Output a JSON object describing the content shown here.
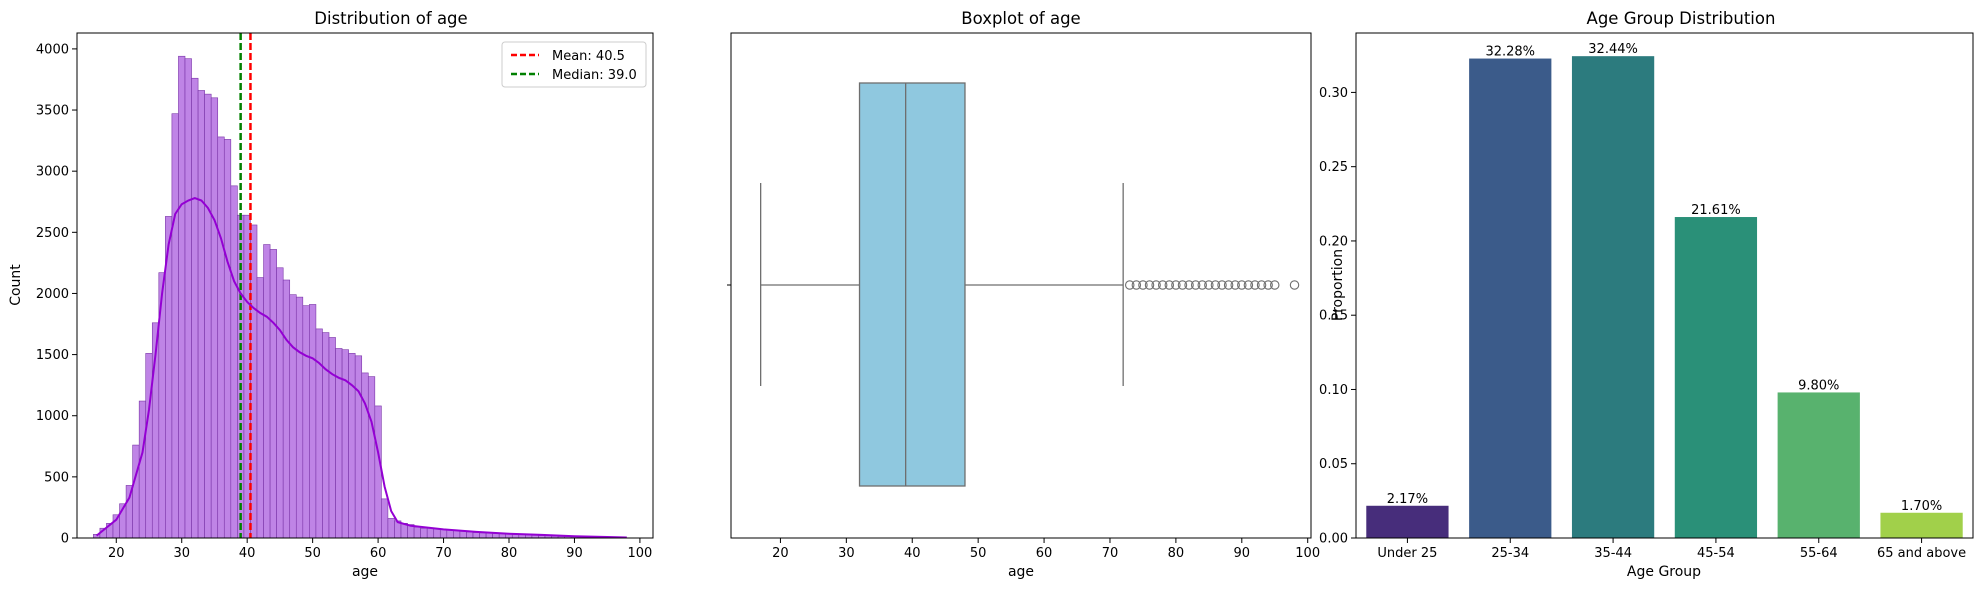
{
  "chart_data": [
    {
      "type": "histogram",
      "title": "Distribution of age",
      "xlabel": "age",
      "ylabel": "Count",
      "xlim": [
        14,
        102
      ],
      "ylim": [
        0,
        4130
      ],
      "xticks": [
        20,
        30,
        40,
        50,
        60,
        70,
        80,
        90,
        100
      ],
      "yticks": [
        0,
        500,
        1000,
        1500,
        2000,
        2500,
        3000,
        3500,
        4000
      ],
      "bar_color": "#bf84e6",
      "edge_color": "#7a35a8",
      "kde_color": "#9400d3",
      "bins": [
        {
          "x": 17,
          "y": 30
        },
        {
          "x": 18,
          "y": 80
        },
        {
          "x": 19,
          "y": 120
        },
        {
          "x": 20,
          "y": 190
        },
        {
          "x": 21,
          "y": 280
        },
        {
          "x": 22,
          "y": 430
        },
        {
          "x": 23,
          "y": 760
        },
        {
          "x": 24,
          "y": 1120
        },
        {
          "x": 25,
          "y": 1510
        },
        {
          "x": 26,
          "y": 1760
        },
        {
          "x": 27,
          "y": 2170
        },
        {
          "x": 28,
          "y": 2630
        },
        {
          "x": 29,
          "y": 3470
        },
        {
          "x": 30,
          "y": 3940
        },
        {
          "x": 31,
          "y": 3920
        },
        {
          "x": 32,
          "y": 3760
        },
        {
          "x": 33,
          "y": 3660
        },
        {
          "x": 34,
          "y": 3630
        },
        {
          "x": 35,
          "y": 3600
        },
        {
          "x": 36,
          "y": 3280
        },
        {
          "x": 37,
          "y": 3260
        },
        {
          "x": 38,
          "y": 2880
        },
        {
          "x": 39,
          "y": 2640
        },
        {
          "x": 40,
          "y": 2640
        },
        {
          "x": 41,
          "y": 2560
        },
        {
          "x": 42,
          "y": 2130
        },
        {
          "x": 43,
          "y": 2400
        },
        {
          "x": 44,
          "y": 2360
        },
        {
          "x": 45,
          "y": 2210
        },
        {
          "x": 46,
          "y": 2110
        },
        {
          "x": 47,
          "y": 1990
        },
        {
          "x": 48,
          "y": 1970
        },
        {
          "x": 49,
          "y": 1900
        },
        {
          "x": 50,
          "y": 1910
        },
        {
          "x": 51,
          "y": 1710
        },
        {
          "x": 52,
          "y": 1680
        },
        {
          "x": 53,
          "y": 1640
        },
        {
          "x": 54,
          "y": 1550
        },
        {
          "x": 55,
          "y": 1540
        },
        {
          "x": 56,
          "y": 1510
        },
        {
          "x": 57,
          "y": 1490
        },
        {
          "x": 58,
          "y": 1350
        },
        {
          "x": 59,
          "y": 1320
        },
        {
          "x": 60,
          "y": 1080
        },
        {
          "x": 61,
          "y": 320
        },
        {
          "x": 62,
          "y": 160
        },
        {
          "x": 63,
          "y": 140
        },
        {
          "x": 64,
          "y": 120
        },
        {
          "x": 65,
          "y": 110
        },
        {
          "x": 66,
          "y": 90
        },
        {
          "x": 67,
          "y": 80
        },
        {
          "x": 68,
          "y": 80
        },
        {
          "x": 69,
          "y": 75
        },
        {
          "x": 70,
          "y": 70
        },
        {
          "x": 71,
          "y": 65
        },
        {
          "x": 72,
          "y": 60
        },
        {
          "x": 73,
          "y": 55
        },
        {
          "x": 74,
          "y": 50
        },
        {
          "x": 75,
          "y": 45
        },
        {
          "x": 76,
          "y": 42
        },
        {
          "x": 77,
          "y": 40
        },
        {
          "x": 78,
          "y": 38
        },
        {
          "x": 79,
          "y": 35
        },
        {
          "x": 80,
          "y": 32
        },
        {
          "x": 81,
          "y": 30
        },
        {
          "x": 82,
          "y": 28
        },
        {
          "x": 83,
          "y": 25
        },
        {
          "x": 84,
          "y": 22
        },
        {
          "x": 85,
          "y": 20
        },
        {
          "x": 86,
          "y": 18
        },
        {
          "x": 87,
          "y": 15
        },
        {
          "x": 88,
          "y": 13
        },
        {
          "x": 89,
          "y": 12
        },
        {
          "x": 90,
          "y": 10
        },
        {
          "x": 91,
          "y": 8
        },
        {
          "x": 92,
          "y": 6
        },
        {
          "x": 93,
          "y": 5
        },
        {
          "x": 94,
          "y": 4
        },
        {
          "x": 95,
          "y": 3
        },
        {
          "x": 96,
          "y": 2
        },
        {
          "x": 97,
          "y": 2
        },
        {
          "x": 98,
          "y": 1
        }
      ],
      "kde": [
        [
          17,
          20
        ],
        [
          20,
          150
        ],
        [
          22,
          330
        ],
        [
          24,
          700
        ],
        [
          25,
          1050
        ],
        [
          26,
          1500
        ],
        [
          27,
          2000
        ],
        [
          28,
          2400
        ],
        [
          29,
          2650
        ],
        [
          30,
          2730
        ],
        [
          31,
          2760
        ],
        [
          32,
          2780
        ],
        [
          33,
          2760
        ],
        [
          34,
          2700
        ],
        [
          35,
          2600
        ],
        [
          36,
          2450
        ],
        [
          37,
          2260
        ],
        [
          38,
          2100
        ],
        [
          39,
          2000
        ],
        [
          40,
          1930
        ],
        [
          41,
          1880
        ],
        [
          42,
          1840
        ],
        [
          43,
          1810
        ],
        [
          44,
          1760
        ],
        [
          45,
          1700
        ],
        [
          46,
          1620
        ],
        [
          47,
          1560
        ],
        [
          48,
          1520
        ],
        [
          49,
          1490
        ],
        [
          50,
          1470
        ],
        [
          51,
          1430
        ],
        [
          52,
          1380
        ],
        [
          53,
          1340
        ],
        [
          54,
          1310
        ],
        [
          55,
          1290
        ],
        [
          56,
          1250
        ],
        [
          57,
          1200
        ],
        [
          58,
          1100
        ],
        [
          59,
          950
        ],
        [
          60,
          700
        ],
        [
          61,
          420
        ],
        [
          62,
          220
        ],
        [
          63,
          130
        ],
        [
          65,
          100
        ],
        [
          70,
          70
        ],
        [
          75,
          50
        ],
        [
          80,
          35
        ],
        [
          85,
          25
        ],
        [
          90,
          15
        ],
        [
          95,
          8
        ],
        [
          98,
          4
        ]
      ],
      "reference_lines": [
        {
          "label": "Mean: 40.5",
          "x": 40.5,
          "color": "#ff0000"
        },
        {
          "label": "Median: 39.0",
          "x": 39.0,
          "color": "#008000"
        }
      ],
      "legend_position": "top-right"
    },
    {
      "type": "boxplot",
      "title": "Boxplot of age",
      "xlabel": "age",
      "xlim": [
        12.5,
        100.5
      ],
      "xticks": [
        20,
        30,
        40,
        50,
        60,
        70,
        80,
        90,
        100
      ],
      "box_color": "#8fc8df",
      "line_color": "#6e6e6e",
      "whisker_low": 17,
      "q1": 32,
      "median": 39,
      "q3": 48,
      "whisker_high": 72,
      "outliers": [
        73,
        74,
        75,
        76,
        77,
        78,
        79,
        80,
        81,
        82,
        83,
        84,
        85,
        86,
        87,
        88,
        89,
        90,
        91,
        92,
        93,
        94,
        95,
        98
      ]
    },
    {
      "type": "bar",
      "title": "Age Group Distribution",
      "xlabel": "Age Group",
      "ylabel": "Proportion",
      "ylim": [
        0,
        0.34
      ],
      "yticks": [
        "0.00",
        "0.05",
        "0.10",
        "0.15",
        "0.20",
        "0.25",
        "0.30"
      ],
      "categories": [
        "Under 25",
        "25-34",
        "35-44",
        "45-54",
        "55-64",
        "65 and above"
      ],
      "values": [
        0.0217,
        0.3228,
        0.3244,
        0.2161,
        0.098,
        0.017
      ],
      "labels": [
        "2.17%",
        "32.28%",
        "32.44%",
        "21.61%",
        "9.80%",
        "1.70%"
      ],
      "colors": [
        "#472d7b",
        "#3b5b8a",
        "#2c7b7e",
        "#2a9078",
        "#58b26e",
        "#a1d04a"
      ]
    }
  ]
}
